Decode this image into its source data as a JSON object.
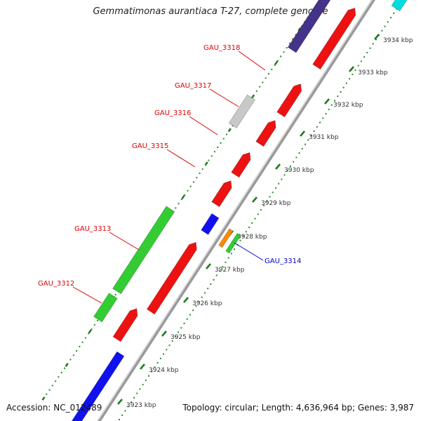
{
  "title": "Gemmatimonas aurantiaca T-27, complete genome",
  "accession": "Accession: NC_012489",
  "summary": "Topology: circular; Length: 4,636,964 bp; Genes: 3,987",
  "colors": {
    "forward_gene": "#ee1111",
    "reverse_gene": "#1111ee",
    "rna_gene": "#33cc33",
    "pseudo_gene": "#c8c8c8",
    "orange_gene": "#ff8800",
    "dark_gene": "#443388",
    "cyan_gene": "#00dddd",
    "ruler_dots": "#2a8a2a",
    "forward_label": "#dd0000",
    "reverse_label": "#0000cc"
  },
  "ruler": [
    {
      "label": "3923 kbp"
    },
    {
      "label": "3924 kbp"
    },
    {
      "label": "3925 kbp"
    },
    {
      "label": "3926 kbp"
    },
    {
      "label": "3927 kbp"
    },
    {
      "label": "3928 kbp"
    },
    {
      "label": "3929 kbp"
    },
    {
      "label": "3930 kbp"
    },
    {
      "label": "3931 kbp"
    },
    {
      "label": "3932 kbp"
    },
    {
      "label": "3933 kbp"
    },
    {
      "label": "3934 kbp"
    }
  ],
  "gene_labels": [
    {
      "text": "GAU_3318",
      "strand": "forward"
    },
    {
      "text": "GAU_3317",
      "strand": "forward"
    },
    {
      "text": "GAU_3316",
      "strand": "forward"
    },
    {
      "text": "GAU_3315",
      "strand": "forward"
    },
    {
      "text": "GAU_3313",
      "strand": "forward"
    },
    {
      "text": "GAU_3312",
      "strand": "forward"
    },
    {
      "text": "GAU_3314",
      "strand": "reverse"
    }
  ]
}
